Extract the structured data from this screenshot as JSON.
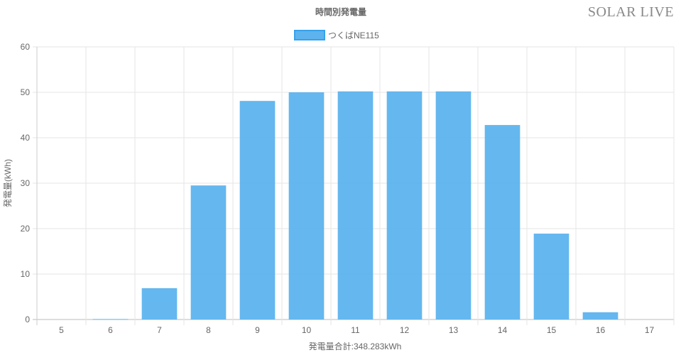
{
  "logo": "SOLAR LIVE",
  "chart_data": {
    "type": "bar",
    "title": "時間別発電量",
    "categories": [
      "5",
      "6",
      "7",
      "8",
      "9",
      "10",
      "11",
      "12",
      "13",
      "14",
      "15",
      "16",
      "17"
    ],
    "series": [
      {
        "name": "つくばNE115",
        "values": [
          0,
          0.1,
          6.9,
          29.5,
          48.1,
          50.0,
          50.2,
          50.2,
          50.2,
          42.8,
          18.9,
          1.6,
          0
        ],
        "color": "#5db3ee"
      }
    ],
    "xlabel": "発電量合計:348.283kWh",
    "ylabel": "発電量(kWh)",
    "ylim": [
      0,
      60
    ],
    "yticks": [
      0,
      10,
      20,
      30,
      40,
      50,
      60
    ],
    "grid": true,
    "legend": "top"
  }
}
